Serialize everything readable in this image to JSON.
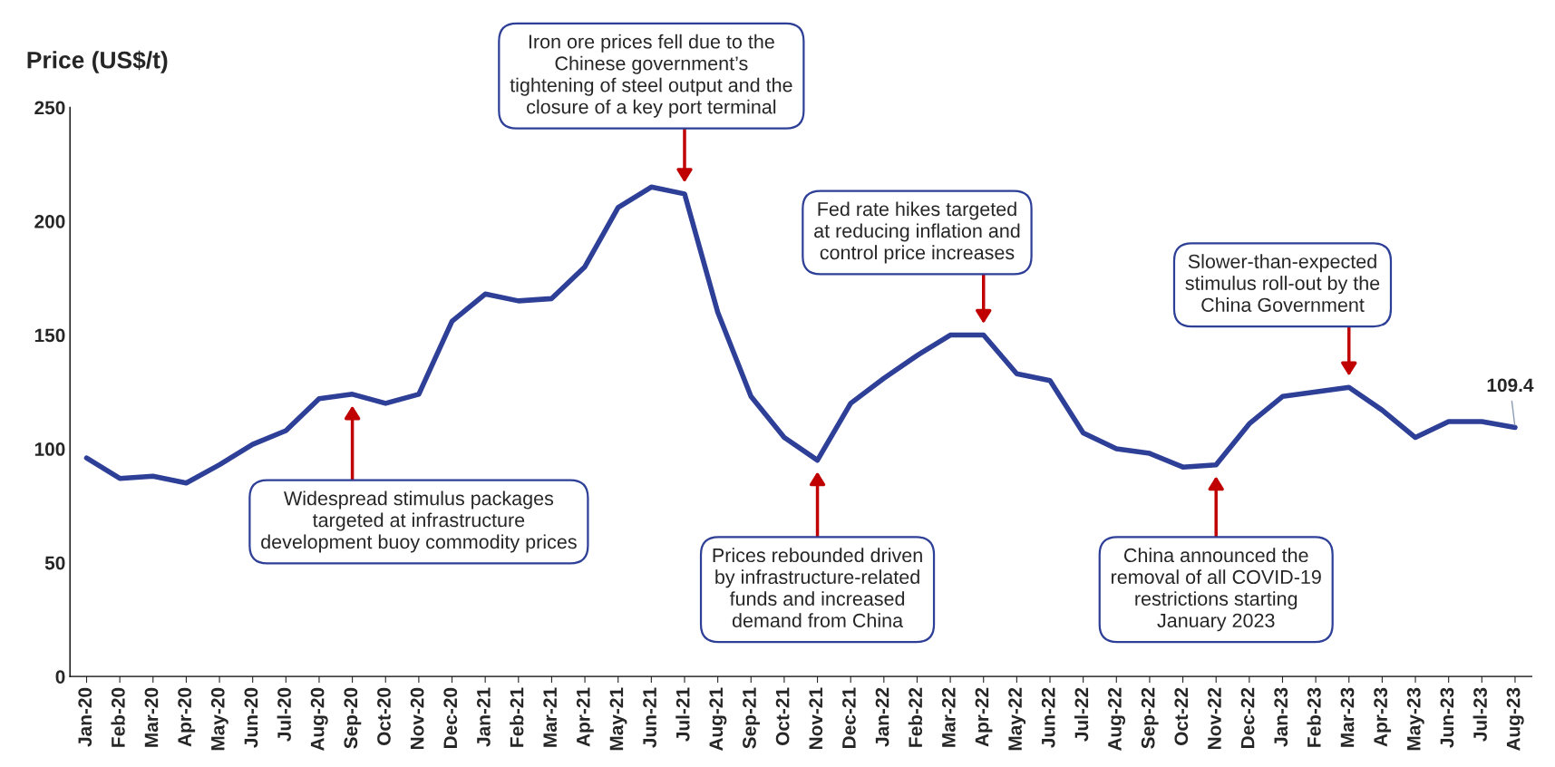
{
  "chart_data": {
    "type": "line",
    "ylabel": "Price (US$/t)",
    "categories": [
      "Jan-20",
      "Feb-20",
      "Mar-20",
      "Apr-20",
      "May-20",
      "Jun-20",
      "Jul-20",
      "Aug-20",
      "Sep-20",
      "Oct-20",
      "Nov-20",
      "Dec-20",
      "Jan-21",
      "Feb-21",
      "Mar-21",
      "Apr-21",
      "May-21",
      "Jun-21",
      "Jul-21",
      "Aug-21",
      "Sep-21",
      "Oct-21",
      "Nov-21",
      "Dec-21",
      "Jan-22",
      "Feb-22",
      "Mar-22",
      "Apr-22",
      "May-22",
      "Jun-22",
      "Jul-22",
      "Aug-22",
      "Sep-22",
      "Oct-22",
      "Nov-22",
      "Dec-22",
      "Jan-23",
      "Feb-23",
      "Mar-23",
      "Apr-23",
      "May-23",
      "Jun-23",
      "Jul-23",
      "Aug-23"
    ],
    "series": [
      {
        "color": "#2e3f97",
        "values": [
          96,
          87,
          88,
          85,
          93,
          102,
          108,
          122,
          124,
          120,
          124,
          156,
          168,
          165,
          166,
          180,
          206,
          215,
          212,
          160,
          123,
          105,
          95,
          120,
          131,
          141,
          150,
          150,
          133,
          130,
          107,
          100,
          98,
          92,
          93,
          111,
          123,
          125,
          127,
          117,
          105,
          112,
          112,
          109.4
        ],
        "value_labels": [
          null,
          null,
          null,
          null,
          null,
          null,
          null,
          null,
          null,
          null,
          null,
          null,
          null,
          null,
          null,
          null,
          null,
          null,
          null,
          null,
          null,
          null,
          null,
          null,
          null,
          null,
          null,
          null,
          null,
          null,
          null,
          null,
          null,
          null,
          null,
          null,
          null,
          null,
          null,
          null,
          null,
          null,
          null,
          "109.4"
        ]
      }
    ],
    "ylim": [
      0,
      250
    ],
    "yticks": [
      0,
      50,
      100,
      150,
      200,
      250
    ],
    "grid": false,
    "legend": false,
    "marker": "none",
    "line_style": "solid",
    "annotations": [
      "Widespread stimulus packages\ntargeted at infrastructure\ndevelopment buoy commodity prices",
      "Iron ore prices fell due to the\nChinese government’s\ntightening of steel output and the\nclosure of a key port terminal",
      "Prices rebounded driven\nby infrastructure-related\nfunds and increased\ndemand from China",
      "Fed rate hikes targeted\nat reducing inflation and\ncontrol price increases",
      "China announced the\nremoval of all COVID-19\nrestrictions starting\nJanuary 2023",
      "Slower-than-expected\nstimulus roll-out by the\nChina Government"
    ]
  }
}
